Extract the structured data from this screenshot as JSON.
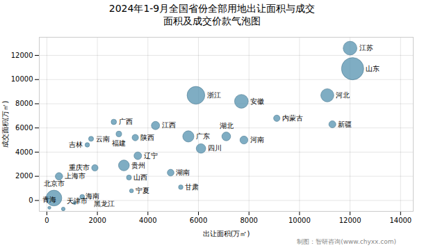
{
  "chart_data": {
    "type": "bubble",
    "title": "2024年1-9月全国省份全部用地出让面积与成交\n面积及成交价款气泡图",
    "xlabel": "出让面积(万㎡)",
    "ylabel": "成交面积(万㎡)",
    "caption": "制图：智研咨询(www.chyxx.com)",
    "labels": [
      "青海",
      "北京市",
      "上海市",
      "天津市",
      "海南",
      "黑龙江",
      "吉林",
      "云南",
      "重庆市",
      "广西",
      "福建",
      "贵州",
      "山西",
      "陕西",
      "辽宁",
      "宁夏",
      "江西",
      "湖南",
      "甘肃",
      "广东",
      "四川",
      "浙江",
      "湖北",
      "河南",
      "安徽",
      "内蒙古",
      "河北",
      "新疆",
      "山东",
      "江苏"
    ],
    "x": [
      100,
      280,
      480,
      650,
      1100,
      1400,
      1600,
      1750,
      1900,
      2650,
      2850,
      3050,
      3250,
      3500,
      3600,
      3350,
      4300,
      4900,
      5300,
      5600,
      6100,
      5900,
      7100,
      7800,
      7700,
      9100,
      11100,
      11300,
      12100,
      12000
    ],
    "y": [
      -600,
      200,
      2000,
      -700,
      -200,
      300,
      4600,
      5100,
      2700,
      6500,
      5500,
      2900,
      1900,
      5200,
      3700,
      800,
      6200,
      2300,
      1100,
      5300,
      4300,
      8700,
      5300,
      5000,
      8200,
      6800,
      8700,
      6300,
      10900,
      12600
    ],
    "sizes": [
      20,
      550,
      120,
      30,
      25,
      50,
      45,
      55,
      90,
      65,
      70,
      260,
      55,
      90,
      130,
      35,
      150,
      100,
      45,
      280,
      200,
      700,
      170,
      140,
      420,
      90,
      380,
      110,
      1100,
      420
    ],
    "color": "#5b96b2",
    "xlim": [
      -300,
      14500
    ],
    "ylim": [
      -900,
      13500
    ],
    "xticks": [
      0,
      2000,
      4000,
      6000,
      8000,
      10000,
      12000,
      14000
    ],
    "yticks": [
      0,
      2000,
      4000,
      6000,
      8000,
      10000,
      12000
    ],
    "grid": true
  }
}
